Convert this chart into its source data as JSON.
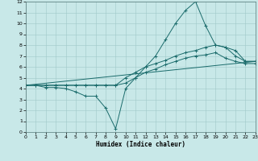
{
  "xlabel": "Humidex (Indice chaleur)",
  "background_color": "#c8e8e8",
  "grid_color": "#a0c8c8",
  "line_color": "#1a6b6b",
  "xlim": [
    0,
    23
  ],
  "ylim": [
    0,
    12
  ],
  "xticks": [
    0,
    1,
    2,
    3,
    4,
    5,
    6,
    7,
    8,
    9,
    10,
    11,
    12,
    13,
    14,
    15,
    16,
    17,
    18,
    19,
    20,
    21,
    22,
    23
  ],
  "yticks": [
    0,
    1,
    2,
    3,
    4,
    5,
    6,
    7,
    8,
    9,
    10,
    11,
    12
  ],
  "series": [
    {
      "x": [
        0,
        1,
        2,
        3,
        4,
        5,
        6,
        7,
        8,
        9,
        10,
        11,
        12,
        13,
        14,
        15,
        16,
        17,
        18,
        19,
        20,
        21,
        22,
        23
      ],
      "y": [
        4.3,
        4.3,
        4.1,
        4.1,
        4.0,
        3.7,
        3.3,
        3.3,
        2.2,
        0.3,
        4.0,
        5.0,
        6.0,
        7.0,
        8.5,
        10.0,
        11.2,
        12.0,
        9.8,
        8.0,
        7.8,
        7.0,
        6.5,
        6.5
      ],
      "marker": true
    },
    {
      "x": [
        0,
        1,
        2,
        3,
        4,
        5,
        6,
        7,
        8,
        9,
        10,
        11,
        12,
        13,
        14,
        15,
        16,
        17,
        18,
        19,
        20,
        21,
        22,
        23
      ],
      "y": [
        4.3,
        4.3,
        4.3,
        4.3,
        4.3,
        4.3,
        4.3,
        4.3,
        4.3,
        4.3,
        5.0,
        5.5,
        6.0,
        6.3,
        6.6,
        7.0,
        7.3,
        7.5,
        7.8,
        8.0,
        7.8,
        7.5,
        6.5,
        6.5
      ],
      "marker": true
    },
    {
      "x": [
        0,
        1,
        2,
        3,
        4,
        5,
        6,
        7,
        8,
        9,
        10,
        11,
        12,
        13,
        14,
        15,
        16,
        17,
        18,
        19,
        20,
        21,
        22,
        23
      ],
      "y": [
        4.3,
        4.3,
        4.3,
        4.3,
        4.3,
        4.3,
        4.3,
        4.3,
        4.3,
        4.3,
        4.5,
        5.0,
        5.5,
        5.8,
        6.2,
        6.5,
        6.8,
        7.0,
        7.1,
        7.3,
        6.8,
        6.5,
        6.3,
        6.3
      ],
      "marker": true
    },
    {
      "x": [
        0,
        23
      ],
      "y": [
        4.3,
        6.5
      ],
      "marker": false
    }
  ]
}
